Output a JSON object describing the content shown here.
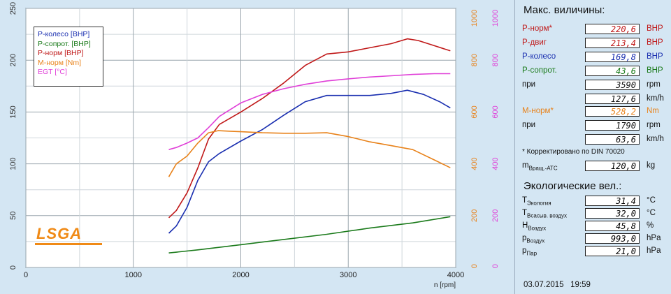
{
  "chart_data": {
    "type": "line",
    "xlabel": "n [rpm]",
    "xlim": [
      0,
      4000
    ],
    "x_ticks": [
      "0",
      "1000",
      "2000",
      "3000",
      "4000"
    ],
    "y_left": {
      "ylim": [
        0,
        250
      ],
      "ticks": [
        "0",
        "50",
        "100",
        "150",
        "200",
        "250"
      ],
      "color": "#333333"
    },
    "y_orange": {
      "ylim": [
        0,
        1000
      ],
      "ticks": [
        "0",
        "200",
        "400",
        "600",
        "800",
        "1000"
      ],
      "color": "#e8821a"
    },
    "y_pink": {
      "ylim": [
        0,
        1000
      ],
      "ticks": [
        "0",
        "200",
        "400",
        "600",
        "800",
        "1000"
      ],
      "color": "#e040d8"
    },
    "grid": true,
    "legend_position": "top-left",
    "series": [
      {
        "name": "P-колесо [BHP]",
        "color": "#1a2fb0",
        "axis": "left",
        "x": [
          1330,
          1400,
          1500,
          1600,
          1700,
          1800,
          2000,
          2200,
          2400,
          2600,
          2800,
          3000,
          3200,
          3400,
          3550,
          3700,
          3850,
          3950
        ],
        "y": [
          33,
          40,
          58,
          84,
          102,
          110,
          122,
          133,
          147,
          160,
          166,
          166,
          166,
          168,
          171,
          167,
          160,
          154
        ]
      },
      {
        "name": "P-сопрот. [BHP]",
        "color": "#1a7a1a",
        "axis": "left",
        "x": [
          1330,
          1600,
          2000,
          2400,
          2800,
          3200,
          3600,
          3950
        ],
        "y": [
          14,
          17,
          22,
          27,
          32,
          38,
          43,
          49
        ]
      },
      {
        "name": "P-норм [BHP]",
        "color": "#c01818",
        "axis": "left",
        "x": [
          1330,
          1400,
          1500,
          1600,
          1700,
          1800,
          2000,
          2200,
          2400,
          2600,
          2800,
          3000,
          3200,
          3400,
          3550,
          3650,
          3800,
          3950
        ],
        "y": [
          48,
          55,
          72,
          96,
          124,
          138,
          150,
          163,
          178,
          195,
          206,
          208,
          212,
          216,
          220.6,
          219,
          214,
          209
        ]
      },
      {
        "name": "M-норм [Nm]",
        "color": "#e8821a",
        "axis": "orange",
        "x": [
          1330,
          1400,
          1500,
          1600,
          1700,
          1790,
          1900,
          2000,
          2200,
          2400,
          2600,
          2800,
          3000,
          3200,
          3400,
          3600,
          3800,
          3950
        ],
        "y": [
          350,
          400,
          430,
          480,
          520,
          528,
          526,
          524,
          520,
          518,
          518,
          520,
          505,
          485,
          470,
          455,
          415,
          385
        ]
      },
      {
        "name": "EGT [°C]",
        "color": "#e040d8",
        "axis": "pink",
        "x": [
          1330,
          1400,
          1500,
          1600,
          1700,
          1800,
          2000,
          2200,
          2400,
          2600,
          2800,
          3000,
          3200,
          3400,
          3600,
          3800,
          3950
        ],
        "y": [
          455,
          463,
          480,
          500,
          540,
          583,
          635,
          668,
          690,
          707,
          720,
          728,
          735,
          740,
          745,
          748,
          748
        ]
      }
    ]
  },
  "logo_text": "LSGA",
  "panel": {
    "max_title": "Макс. виличины:",
    "rows_top": [
      {
        "label": "P-норм*",
        "value": "220,6",
        "unit": "BHP",
        "label_color": "#c01818",
        "value_color": "#c01818",
        "unit_color": "#c01818"
      },
      {
        "label": "P-двиг",
        "value": "213,4",
        "unit": "BHP",
        "label_color": "#c01818",
        "value_color": "#c01818",
        "unit_color": "#c01818"
      },
      {
        "label": "P-колесо",
        "value": "169,8",
        "unit": "BHP",
        "label_color": "#1a2fb0",
        "value_color": "#1a2fb0",
        "unit_color": "#1a2fb0"
      },
      {
        "label": "P-сопрот.",
        "value": "43,6",
        "unit": "BHP",
        "label_color": "#1a7a1a",
        "value_color": "#1a7a1a",
        "unit_color": "#1a7a1a"
      },
      {
        "label": "при",
        "value": "3590",
        "unit": "rpm",
        "label_color": "#111111",
        "value_color": "#111111",
        "unit_color": "#111111"
      },
      {
        "label": "",
        "value": "127,6",
        "unit": "km/h",
        "label_color": "#111111",
        "value_color": "#111111",
        "unit_color": "#111111"
      }
    ],
    "rows_mid": [
      {
        "label": "M-норм*",
        "value": "528,2",
        "unit": "Nm",
        "label_color": "#e8821a",
        "value_color": "#e8821a",
        "unit_color": "#e8821a"
      },
      {
        "label": "при",
        "value": "1790",
        "unit": "rpm",
        "label_color": "#111111",
        "value_color": "#111111",
        "unit_color": "#111111"
      },
      {
        "label": "",
        "value": "63,6",
        "unit": "km/h",
        "label_color": "#111111",
        "value_color": "#111111",
        "unit_color": "#111111"
      }
    ],
    "note": "* Корректировано по DIN 70020",
    "mass_label_main": "m",
    "mass_label_sub": "Вращ.-АТС",
    "mass_value": "120,0",
    "mass_unit": "kg",
    "eco_title": "Экологические вел.:",
    "eco_rows": [
      {
        "main": "T",
        "sub": "Экология",
        "value": "31,4",
        "unit": "°C"
      },
      {
        "main": "T",
        "sub": "Всасыв. воздух",
        "value": "32,0",
        "unit": "°C"
      },
      {
        "main": "H",
        "sub": "Воздух",
        "value": "45,8",
        "unit": "%"
      },
      {
        "main": "p",
        "sub": "Воздух",
        "value": "993,0",
        "unit": "hPa"
      },
      {
        "main": "p",
        "sub": "Пар",
        "value": "21,0",
        "unit": "hPa"
      }
    ],
    "date": "03.07.2015",
    "time": "19:59"
  }
}
